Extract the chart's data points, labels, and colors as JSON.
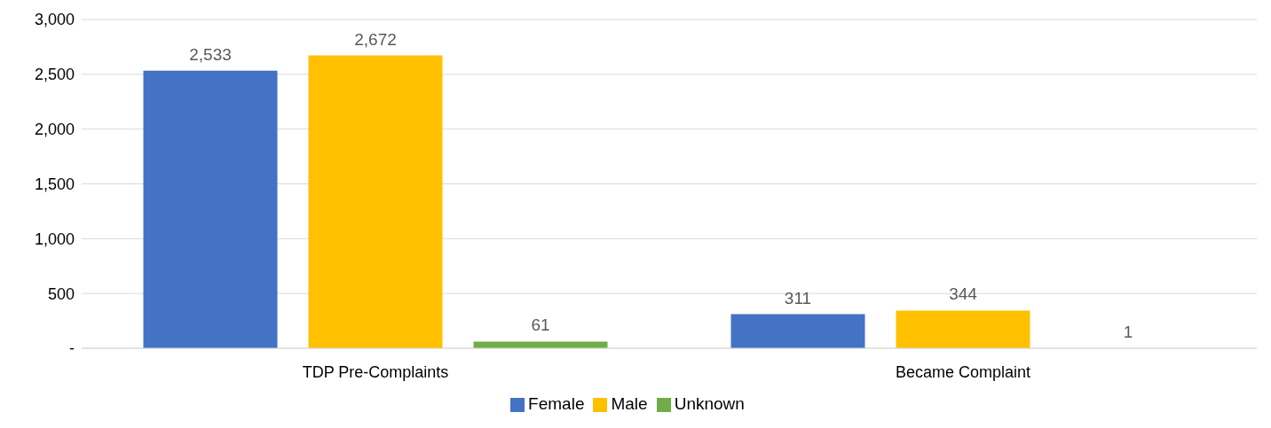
{
  "chart_data": {
    "type": "bar",
    "categories": [
      "TDP Pre-Complaints",
      "Became Complaint"
    ],
    "series": [
      {
        "name": "Female",
        "color": "#4472c4",
        "values": [
          2533,
          311
        ],
        "value_labels": [
          "2,533",
          "311"
        ]
      },
      {
        "name": "Male",
        "color": "#ffc000",
        "values": [
          2672,
          344
        ],
        "value_labels": [
          "2,672",
          "344"
        ]
      },
      {
        "name": "Unknown",
        "color": "#70ad47",
        "values": [
          61,
          1
        ],
        "value_labels": [
          "61",
          "1"
        ]
      }
    ],
    "ylim": [
      0,
      3000
    ],
    "yticks": [
      {
        "value": 0,
        "label": "-"
      },
      500,
      {
        "value": 1000,
        "label": "1,000"
      },
      {
        "value": 1500,
        "label": "1,500"
      },
      {
        "value": 2000,
        "label": "2,000"
      },
      {
        "value": 2500,
        "label": "2,500"
      },
      {
        "value": 3000,
        "label": "3,000"
      }
    ],
    "grid": "y",
    "legend": "bottom"
  }
}
